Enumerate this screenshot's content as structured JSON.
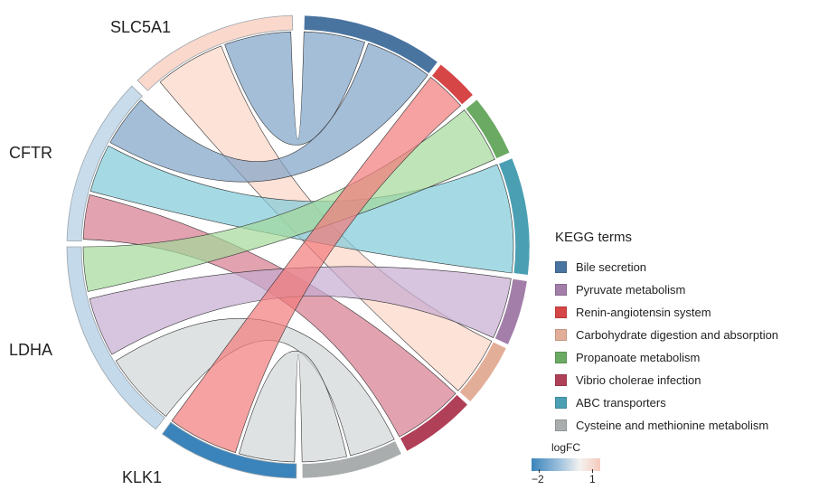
{
  "genes": [
    {
      "id": "SLC5A1",
      "label": "SLC5A1",
      "color": "#fad8cc"
    },
    {
      "id": "CFTR",
      "label": "CFTR",
      "color": "#c9dcec"
    },
    {
      "id": "LDHA",
      "label": "LDHA",
      "color": "#c4d9ea"
    },
    {
      "id": "KLK1",
      "label": "KLK1",
      "color": "#3b84bb"
    }
  ],
  "terms": [
    {
      "id": "bile",
      "label": "Bile secretion",
      "color": "#4a74a0",
      "ribbon_color": "#7da2c7"
    },
    {
      "id": "pyruvate",
      "label": "Pyruvate metabolism",
      "color": "#a27ea9",
      "ribbon_color": "#c6abd2"
    },
    {
      "id": "renin",
      "label": "Renin-angiotensin system",
      "color": "#d64646",
      "ribbon_color": "#f27a7a"
    },
    {
      "id": "carb",
      "label": "Carbohydrate digestion and absorption",
      "color": "#e3ae98",
      "ribbon_color": "#fcd6c8"
    },
    {
      "id": "propanoate",
      "label": "Propanoate metabolism",
      "color": "#6aaa62",
      "ribbon_color": "#a2d99a"
    },
    {
      "id": "vibrio",
      "label": "Vibrio cholerae infection",
      "color": "#b04058",
      "ribbon_color": "#d57a8e"
    },
    {
      "id": "abc",
      "label": "ABC transporters",
      "color": "#4a9fb3",
      "ribbon_color": "#7fcad9"
    },
    {
      "id": "cysteine",
      "label": "Cysteine and methionine metabolism",
      "color": "#a9adad",
      "ribbon_color": "#d2d6d6"
    }
  ],
  "links": [
    {
      "gene": "SLC5A1",
      "term": "bile"
    },
    {
      "gene": "SLC5A1",
      "term": "carb"
    },
    {
      "gene": "CFTR",
      "term": "bile"
    },
    {
      "gene": "CFTR",
      "term": "abc"
    },
    {
      "gene": "CFTR",
      "term": "vibrio"
    },
    {
      "gene": "LDHA",
      "term": "propanoate"
    },
    {
      "gene": "LDHA",
      "term": "pyruvate"
    },
    {
      "gene": "LDHA",
      "term": "cysteine"
    },
    {
      "gene": "KLK1",
      "term": "renin"
    },
    {
      "gene": "KLK1",
      "term": "cysteine"
    }
  ],
  "legend": {
    "title": "KEGG terms",
    "items": [
      {
        "label": "Bile secretion",
        "color": "#4a74a0"
      },
      {
        "label": "Pyruvate metabolism",
        "color": "#a27ea9"
      },
      {
        "label": "Renin-angiotensin system",
        "color": "#d64646"
      },
      {
        "label": "Carbohydrate digestion and absorption",
        "color": "#e3ae98"
      },
      {
        "label": "Propanoate metabolism",
        "color": "#6aaa62"
      },
      {
        "label": "Vibrio cholerae infection",
        "color": "#b04058"
      },
      {
        "label": "ABC transporters",
        "color": "#4a9fb3"
      },
      {
        "label": "Cysteine and methionine metabolism",
        "color": "#a9adad"
      }
    ]
  },
  "colorbar": {
    "title": "logFC",
    "min_label": "−2",
    "max_label": "1",
    "min_color": "#3b84bb",
    "max_color": "#f6cabc"
  }
}
